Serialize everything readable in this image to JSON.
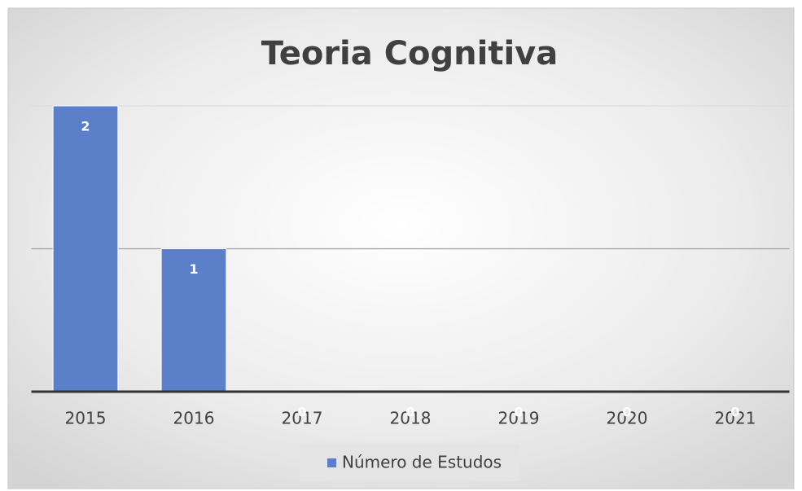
{
  "chart_data": {
    "type": "bar",
    "title": "Teoria Cognitiva",
    "categories": [
      "2015",
      "2016",
      "2017",
      "2018",
      "2019",
      "2020",
      "2021"
    ],
    "series": [
      {
        "name": "Número de Estudos",
        "color": "#5b7fc9",
        "values": [
          2,
          1,
          0,
          0,
          0,
          0,
          0
        ]
      }
    ],
    "ylim": [
      0,
      2
    ],
    "yticks": [
      0,
      1,
      2
    ],
    "grid": true,
    "legend": "bottom"
  }
}
